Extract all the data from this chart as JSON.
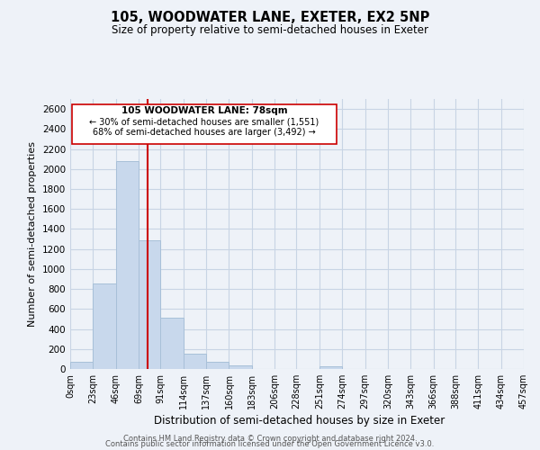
{
  "title": "105, WOODWATER LANE, EXETER, EX2 5NP",
  "subtitle": "Size of property relative to semi-detached houses in Exeter",
  "xlabel": "Distribution of semi-detached houses by size in Exeter",
  "ylabel": "Number of semi-detached properties",
  "bar_edges": [
    0,
    23,
    46,
    69,
    91,
    114,
    137,
    160,
    183,
    206,
    228,
    251,
    274,
    297,
    320,
    343,
    366,
    388,
    411,
    434,
    457
  ],
  "bar_labels": [
    "0sqm",
    "23sqm",
    "46sqm",
    "69sqm",
    "91sqm",
    "114sqm",
    "137sqm",
    "160sqm",
    "183sqm",
    "206sqm",
    "228sqm",
    "251sqm",
    "274sqm",
    "297sqm",
    "320sqm",
    "343sqm",
    "366sqm",
    "388sqm",
    "411sqm",
    "434sqm",
    "457sqm"
  ],
  "bar_heights": [
    75,
    855,
    2075,
    1290,
    510,
    155,
    75,
    35,
    0,
    0,
    0,
    25,
    0,
    0,
    0,
    0,
    0,
    0,
    0,
    0
  ],
  "bar_color": "#c8d8ec",
  "bar_edge_color": "#a8c0d8",
  "ylim": [
    0,
    2700
  ],
  "yticks": [
    0,
    200,
    400,
    600,
    800,
    1000,
    1200,
    1400,
    1600,
    1800,
    2000,
    2200,
    2400,
    2600
  ],
  "property_line_x": 78,
  "property_line_color": "#cc0000",
  "annotation_title": "105 WOODWATER LANE: 78sqm",
  "annotation_line1": "← 30% of semi-detached houses are smaller (1,551)",
  "annotation_line2": "68% of semi-detached houses are larger (3,492) →",
  "annotation_box_color": "#ffffff",
  "annotation_box_edge": "#cc0000",
  "footer_line1": "Contains HM Land Registry data © Crown copyright and database right 2024.",
  "footer_line2": "Contains public sector information licensed under the Open Government Licence v3.0.",
  "grid_color": "#c8d4e4",
  "background_color": "#eef2f8"
}
